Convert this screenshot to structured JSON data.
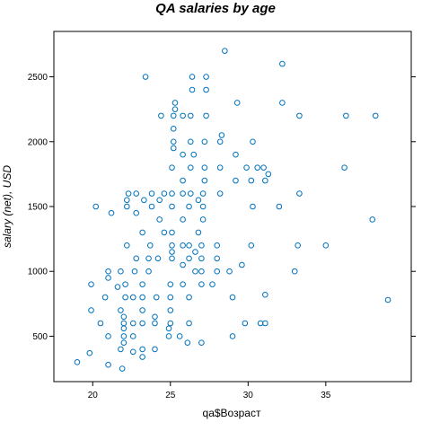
{
  "chart_data": {
    "type": "scatter",
    "title": "QA salaries by age",
    "xlabel": "qa$Возраст",
    "ylabel": "salary (net), USD",
    "xlim": [
      17.5,
      40.5
    ],
    "ylim": [
      150,
      2850
    ],
    "xticks": [
      20,
      25,
      30,
      35
    ],
    "yticks": [
      500,
      1000,
      1500,
      2000,
      2500
    ],
    "grid": false,
    "point_color": "#0072BD",
    "series": [
      {
        "points": [
          [
            19,
            300
          ],
          [
            19.8,
            370
          ],
          [
            19.9,
            700
          ],
          [
            19.9,
            900
          ],
          [
            20.2,
            1500
          ],
          [
            20.5,
            600
          ],
          [
            20.8,
            800
          ],
          [
            21,
            280
          ],
          [
            21,
            500
          ],
          [
            21,
            950
          ],
          [
            21,
            1000
          ],
          [
            21.2,
            1450
          ],
          [
            21.6,
            880
          ],
          [
            21.8,
            400
          ],
          [
            21.8,
            700
          ],
          [
            21.8,
            1000
          ],
          [
            21.9,
            250
          ],
          [
            22,
            450
          ],
          [
            22,
            500
          ],
          [
            22,
            560
          ],
          [
            22,
            600
          ],
          [
            22,
            650
          ],
          [
            22.1,
            800
          ],
          [
            22.1,
            900
          ],
          [
            22.2,
            1200
          ],
          [
            22.2,
            1500
          ],
          [
            22.2,
            1550
          ],
          [
            22.3,
            1600
          ],
          [
            22.6,
            380
          ],
          [
            22.6,
            500
          ],
          [
            22.6,
            600
          ],
          [
            22.6,
            800
          ],
          [
            22.7,
            1000
          ],
          [
            22.8,
            1100
          ],
          [
            22.8,
            1450
          ],
          [
            22.8,
            1600
          ],
          [
            23.2,
            340
          ],
          [
            23.2,
            400
          ],
          [
            23.2,
            600
          ],
          [
            23.2,
            700
          ],
          [
            23.2,
            800
          ],
          [
            23.2,
            900
          ],
          [
            23.2,
            1300
          ],
          [
            23.3,
            1550
          ],
          [
            23.4,
            2500
          ],
          [
            23.6,
            1000
          ],
          [
            23.6,
            1100
          ],
          [
            23.7,
            1200
          ],
          [
            23.8,
            1500
          ],
          [
            23.8,
            1600
          ],
          [
            24,
            400
          ],
          [
            24,
            600
          ],
          [
            24,
            650
          ],
          [
            24.1,
            800
          ],
          [
            24.2,
            1100
          ],
          [
            24.3,
            1400
          ],
          [
            24.3,
            1550
          ],
          [
            24.4,
            2200
          ],
          [
            24.6,
            1300
          ],
          [
            24.6,
            1600
          ],
          [
            24.9,
            500
          ],
          [
            24.9,
            560
          ],
          [
            25,
            600
          ],
          [
            25,
            700
          ],
          [
            25,
            800
          ],
          [
            25,
            900
          ],
          [
            25.1,
            1100
          ],
          [
            25.1,
            1150
          ],
          [
            25.1,
            1200
          ],
          [
            25.1,
            1300
          ],
          [
            25.1,
            1500
          ],
          [
            25.1,
            1600
          ],
          [
            25.1,
            1800
          ],
          [
            25.2,
            1950
          ],
          [
            25.2,
            2000
          ],
          [
            25.2,
            2100
          ],
          [
            25.2,
            2200
          ],
          [
            25.3,
            2250
          ],
          [
            25.3,
            2300
          ],
          [
            25.6,
            500
          ],
          [
            25.8,
            900
          ],
          [
            25.8,
            1050
          ],
          [
            25.8,
            1200
          ],
          [
            25.8,
            1400
          ],
          [
            25.8,
            1600
          ],
          [
            25.8,
            1700
          ],
          [
            25.8,
            1900
          ],
          [
            25.8,
            2200
          ],
          [
            26.1,
            450
          ],
          [
            26.2,
            600
          ],
          [
            26.2,
            800
          ],
          [
            26.2,
            1100
          ],
          [
            26.2,
            1200
          ],
          [
            26.2,
            1500
          ],
          [
            26.3,
            1600
          ],
          [
            26.3,
            1800
          ],
          [
            26.3,
            2000
          ],
          [
            26.3,
            2200
          ],
          [
            26.4,
            2400
          ],
          [
            26.4,
            2500
          ],
          [
            26.5,
            1900
          ],
          [
            26.6,
            1000
          ],
          [
            26.6,
            1150
          ],
          [
            26.8,
            1300
          ],
          [
            26.8,
            1550
          ],
          [
            27,
            450
          ],
          [
            27,
            900
          ],
          [
            27,
            1000
          ],
          [
            27,
            1100
          ],
          [
            27,
            1200
          ],
          [
            27.1,
            1400
          ],
          [
            27.1,
            1500
          ],
          [
            27.1,
            1600
          ],
          [
            27.2,
            1700
          ],
          [
            27.2,
            1800
          ],
          [
            27.2,
            2000
          ],
          [
            27.3,
            2200
          ],
          [
            27.3,
            2400
          ],
          [
            27.3,
            2500
          ],
          [
            27.7,
            900
          ],
          [
            28,
            1000
          ],
          [
            28,
            1100
          ],
          [
            28,
            1200
          ],
          [
            28.2,
            1600
          ],
          [
            28.2,
            1800
          ],
          [
            28.2,
            2000
          ],
          [
            28.3,
            2050
          ],
          [
            28.5,
            2700
          ],
          [
            28.8,
            1000
          ],
          [
            29,
            500
          ],
          [
            29,
            800
          ],
          [
            29.2,
            1700
          ],
          [
            29.2,
            1900
          ],
          [
            29.3,
            2300
          ],
          [
            29.6,
            1050
          ],
          [
            29.8,
            600
          ],
          [
            29.9,
            1800
          ],
          [
            30.2,
            1200
          ],
          [
            30.2,
            1700
          ],
          [
            30.3,
            1500
          ],
          [
            30.3,
            2000
          ],
          [
            30.6,
            1800
          ],
          [
            30.8,
            600
          ],
          [
            31,
            1800
          ],
          [
            31.1,
            600
          ],
          [
            31.1,
            820
          ],
          [
            31.1,
            1700
          ],
          [
            31.3,
            1750
          ],
          [
            32,
            1500
          ],
          [
            32.2,
            2300
          ],
          [
            32.2,
            2600
          ],
          [
            33,
            1000
          ],
          [
            33.2,
            1200
          ],
          [
            33.3,
            1600
          ],
          [
            33.3,
            2200
          ],
          [
            35,
            1200
          ],
          [
            36.2,
            1800
          ],
          [
            36.3,
            2200
          ],
          [
            38,
            1400
          ],
          [
            38.2,
            2200
          ],
          [
            39,
            780
          ]
        ]
      }
    ]
  }
}
